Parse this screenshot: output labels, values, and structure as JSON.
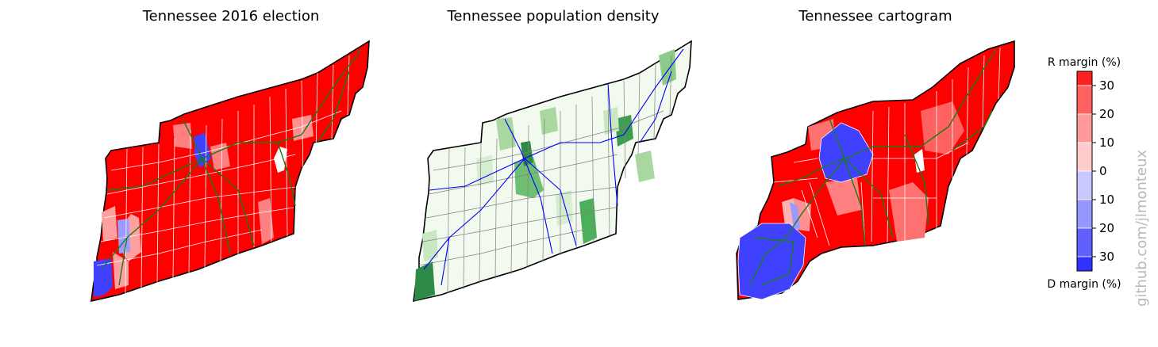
{
  "figure": {
    "watermark": "github.com/jlmonteux"
  },
  "chart_data": [
    {
      "type": "choropleth",
      "title": "Tennessee 2016 election",
      "value_field": "margin",
      "colors": {
        "republican": "#ff0000",
        "democrat": "#4040ff",
        "roads": "#1a7a1a",
        "borders": "#ffffff"
      }
    },
    {
      "type": "choropleth",
      "title": "Tennessee population density",
      "colors": {
        "low": "#f2f9ee",
        "high": "#1f7a3a",
        "roads": "#0000ff",
        "borders": "#808080"
      }
    },
    {
      "type": "cartogram",
      "title": "Tennessee cartogram",
      "colors": {
        "republican": "#ff0000",
        "democrat": "#4040ff",
        "roads": "#1a7a1a",
        "borders": "#ffffff"
      }
    }
  ],
  "colorbar": {
    "top_label": "R margin (%)",
    "bottom_label": "D margin (%)",
    "ticks": [
      "30",
      "20",
      "10",
      "0",
      "10",
      "20",
      "30"
    ],
    "bins": [
      {
        "from": 35,
        "to": 30,
        "color": "#ff2020"
      },
      {
        "from": 30,
        "to": 20,
        "color": "#ff6060"
      },
      {
        "from": 20,
        "to": 10,
        "color": "#ff9a9a"
      },
      {
        "from": 10,
        "to": 0,
        "color": "#ffcccc"
      },
      {
        "from": 0,
        "to": -10,
        "color": "#c8c8ff"
      },
      {
        "from": -10,
        "to": -20,
        "color": "#9696ff"
      },
      {
        "from": -20,
        "to": -30,
        "color": "#6060ff"
      },
      {
        "from": -30,
        "to": -35,
        "color": "#3030ff"
      }
    ],
    "range": [
      -35,
      35
    ]
  }
}
